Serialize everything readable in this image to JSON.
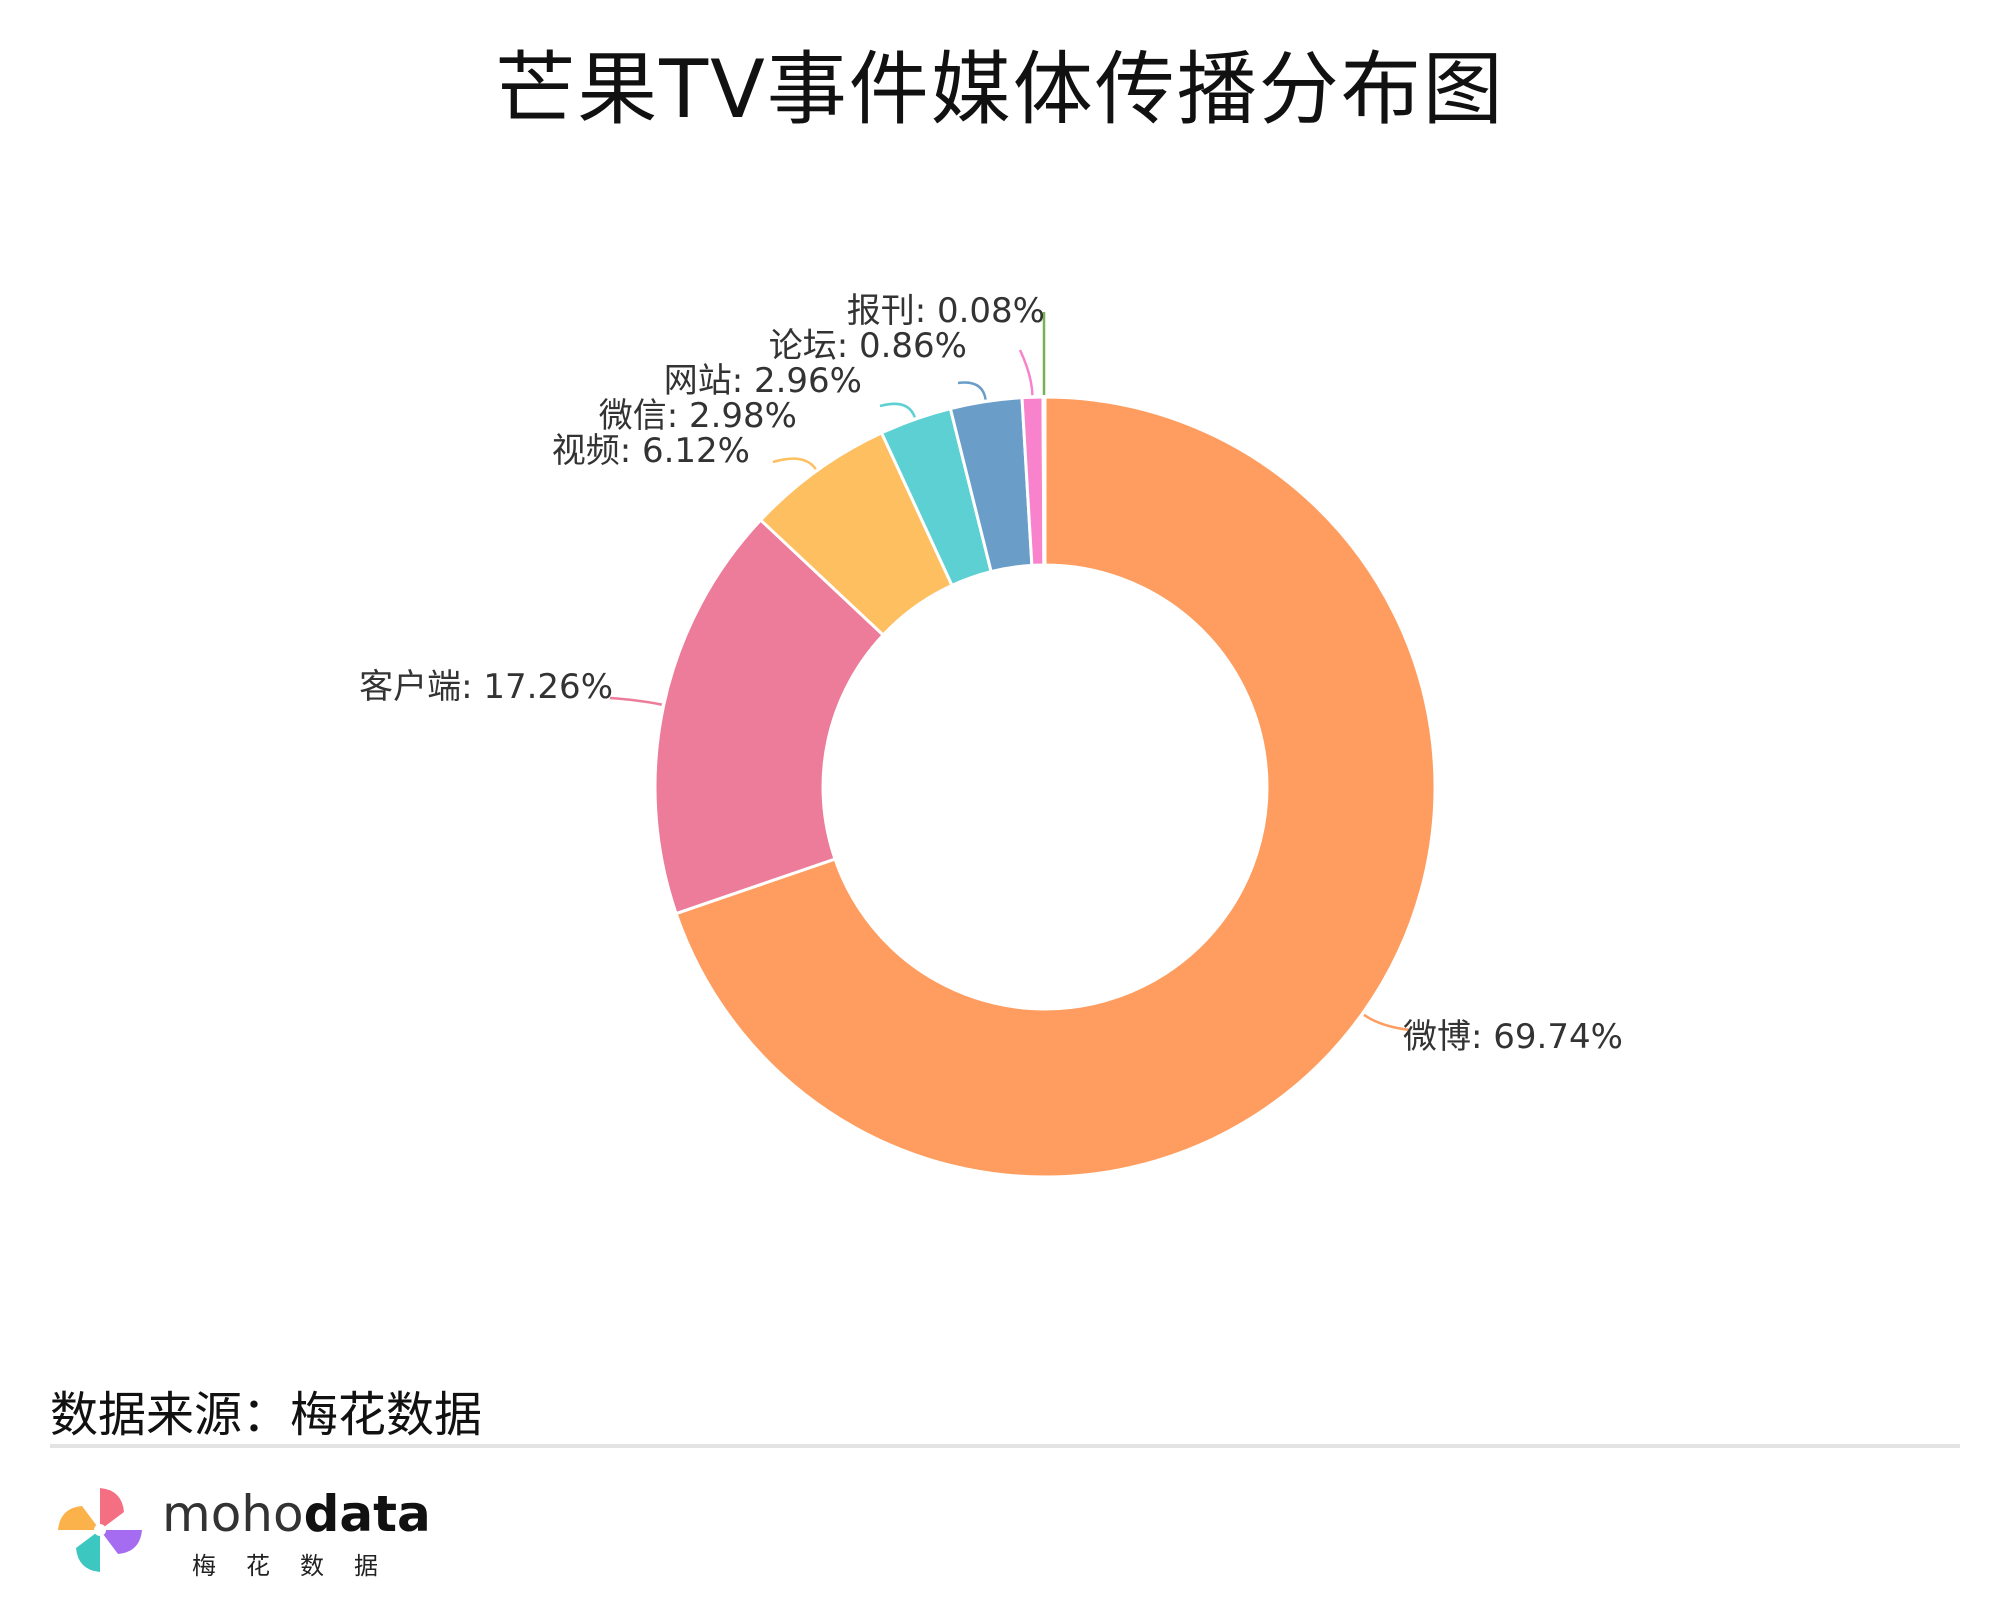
{
  "title": "芒果TV事件媒体传播分布图",
  "source_note": "数据来源：梅花数据",
  "logo": {
    "word_light": "moho",
    "word_bold": "data",
    "subtitle": "梅花数据"
  },
  "chart_data": {
    "type": "pie",
    "title": "芒果TV事件媒体传播分布图",
    "donut": true,
    "start": "12 o'clock, clockwise",
    "slices": [
      {
        "name": "微博",
        "value": 69.74,
        "label": "微博: 69.74%",
        "color": "#fe9d5f"
      },
      {
        "name": "客户端",
        "value": 17.26,
        "label": "客户端: 17.26%",
        "color": "#ec7c9a"
      },
      {
        "name": "视频",
        "value": 6.12,
        "label": "视频: 6.12%",
        "color": "#fdbf5f"
      },
      {
        "name": "微信",
        "value": 2.98,
        "label": "微信: 2.98%",
        "color": "#5cd0d2"
      },
      {
        "name": "网站",
        "value": 2.96,
        "label": "网站: 2.96%",
        "color": "#6a9ec9"
      },
      {
        "name": "论坛",
        "value": 0.86,
        "label": "论坛: 0.86%",
        "color": "#f883cc"
      },
      {
        "name": "报刊",
        "value": 0.08,
        "label": "报刊: 0.08%",
        "color": "#77b255"
      }
    ]
  }
}
